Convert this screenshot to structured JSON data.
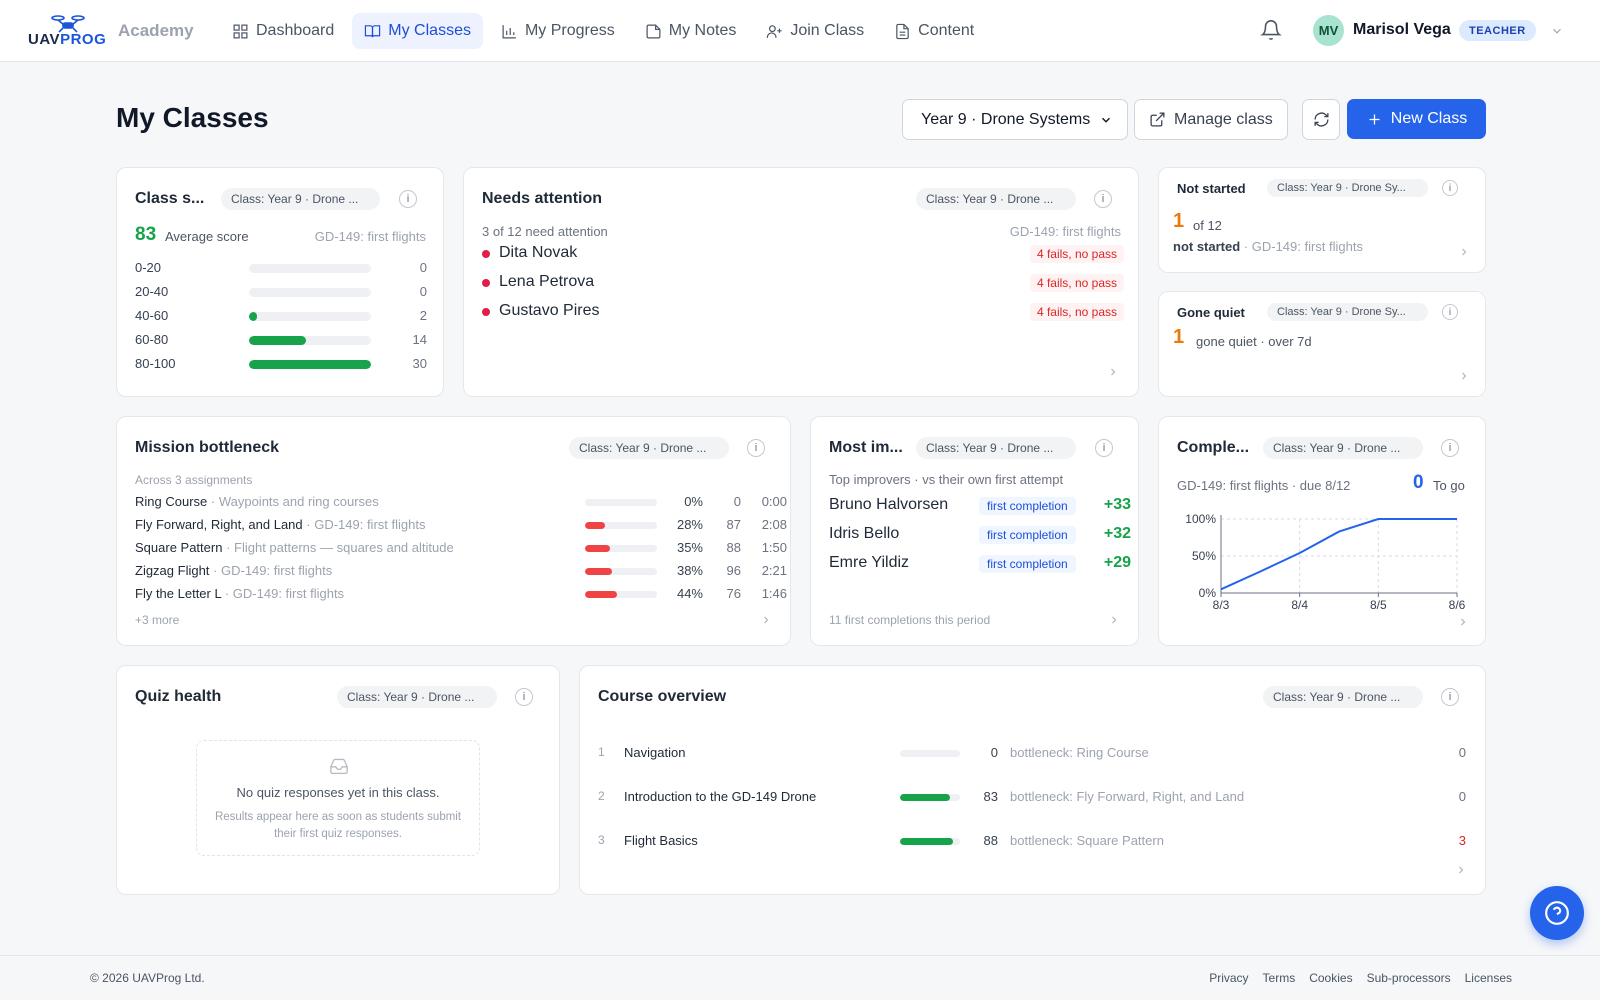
{
  "brand": {
    "logo_text_a": "UAV",
    "logo_text_b": "PROG",
    "app_name": "Academy"
  },
  "nav": [
    {
      "label": "Dashboard",
      "icon": "grid-icon"
    },
    {
      "label": "My Classes",
      "icon": "book-icon",
      "active": true
    },
    {
      "label": "My Progress",
      "icon": "bar-chart-icon"
    },
    {
      "label": "My Notes",
      "icon": "note-icon"
    },
    {
      "label": "Join Class",
      "icon": "user-plus-icon"
    },
    {
      "label": "Content",
      "icon": "document-icon"
    }
  ],
  "user": {
    "initials": "MV",
    "name": "Marisol Vega",
    "role": "TEACHER"
  },
  "page": {
    "title": "My Classes",
    "selected_class": "Year 9 · Drone Systems",
    "manage_label": "Manage class",
    "new_class_label": "New Class"
  },
  "class_summary": {
    "title": "Class s...",
    "chip": "Class: Year 9 · Drone ...",
    "average": "83",
    "average_label": "Average score",
    "assignment": "GD-149: first flights",
    "distribution": [
      {
        "range": "0-20",
        "count": "0",
        "fill": 0
      },
      {
        "range": "20-40",
        "count": "0",
        "fill": 0
      },
      {
        "range": "40-60",
        "count": "2",
        "fill": 0.067
      },
      {
        "range": "60-80",
        "count": "14",
        "fill": 0.467
      },
      {
        "range": "80-100",
        "count": "30",
        "fill": 1.0
      }
    ]
  },
  "needs_attention": {
    "title": "Needs attention",
    "chip": "Class: Year 9 · Drone ...",
    "summary": "3 of 12 need attention",
    "assignment": "GD-149: first flights",
    "students": [
      {
        "name": "Dita Novak",
        "tag": "4 fails, no pass"
      },
      {
        "name": "Lena Petrova",
        "tag": "4 fails, no pass"
      },
      {
        "name": "Gustavo Pires",
        "tag": "4 fails, no pass"
      }
    ]
  },
  "not_started": {
    "title": "Not started",
    "chip": "Class: Year 9 · Drone Sy...",
    "count": "1",
    "of": "of 12",
    "label": "not started",
    "assignment": "· GD-149: first flights"
  },
  "gone_quiet": {
    "title": "Gone quiet",
    "chip": "Class: Year 9 · Drone Sy...",
    "count": "1",
    "label": "gone quiet · over 7d"
  },
  "mission_bottleneck": {
    "title": "Mission bottleneck",
    "chip": "Class: Year 9 · Drone ...",
    "caption": "Across 3 assignments",
    "rows": [
      {
        "mission": "Ring Course",
        "context": "· Waypoints and ring courses",
        "pct": "0%",
        "fill": 0,
        "attempts": "0",
        "time": "0:00"
      },
      {
        "mission": "Fly Forward, Right, and Land",
        "context": "· GD-149: first flights",
        "pct": "28%",
        "fill": 0.28,
        "attempts": "87",
        "time": "2:08"
      },
      {
        "mission": "Square Pattern",
        "context": "· Flight patterns — squares and altitude",
        "pct": "35%",
        "fill": 0.35,
        "attempts": "88",
        "time": "1:50"
      },
      {
        "mission": "Zigzag Flight",
        "context": "· GD-149: first flights",
        "pct": "38%",
        "fill": 0.38,
        "attempts": "96",
        "time": "2:21"
      },
      {
        "mission": "Fly the Letter L",
        "context": "· GD-149: first flights",
        "pct": "44%",
        "fill": 0.44,
        "attempts": "76",
        "time": "1:46"
      }
    ],
    "more": "+3 more"
  },
  "most_improved": {
    "title": "Most im...",
    "chip": "Class: Year 9 · Drone ...",
    "caption": "Top improvers · vs their own first attempt",
    "rows": [
      {
        "name": "Bruno Halvorsen",
        "tag": "first completion",
        "gain": "+33"
      },
      {
        "name": "Idris Bello",
        "tag": "first completion",
        "gain": "+32"
      },
      {
        "name": "Emre Yildiz",
        "tag": "first completion",
        "gain": "+29"
      }
    ],
    "footer": "11 first completions this period"
  },
  "completion": {
    "title": "Comple...",
    "chip": "Class: Year 9 · Drone ...",
    "assignment": "GD-149: first flights · due 8/12",
    "to_go_count": "0",
    "to_go_label": "To go"
  },
  "chart_data": {
    "type": "line",
    "title": "",
    "xlabel": "",
    "ylabel": "",
    "x": [
      "8/3",
      "8/4",
      "8/5",
      "8/6"
    ],
    "x_ticks": [
      "8/3",
      "8/4",
      "8/5",
      "8/6"
    ],
    "y_ticks": [
      "0%",
      "50%",
      "100%"
    ],
    "ylim": [
      0,
      100
    ],
    "series": [
      {
        "x": [
          0,
          0.5,
          1,
          1.5,
          2,
          2.25,
          2.5,
          3
        ],
        "values": [
          5,
          29,
          54,
          83,
          100,
          100,
          100,
          100
        ]
      }
    ],
    "grid": true,
    "color": "#2563eb"
  },
  "quiz_health": {
    "title": "Quiz health",
    "chip": "Class: Year 9 · Drone ...",
    "empty_title": "No quiz responses yet in this class.",
    "empty_body": "Results appear here as soon as students submit their first quiz responses."
  },
  "course_overview": {
    "title": "Course overview",
    "chip": "Class: Year 9 · Drone ...",
    "rows": [
      {
        "num": "1",
        "name": "Navigation",
        "score": "0",
        "fill": 0,
        "bottleneck": "bottleneck: Ring Course",
        "count": "0"
      },
      {
        "num": "2",
        "name": "Introduction to the GD-149 Drone",
        "score": "83",
        "fill": 0.83,
        "bottleneck": "bottleneck: Fly Forward, Right, and Land",
        "count": "0"
      },
      {
        "num": "3",
        "name": "Flight Basics",
        "score": "88",
        "fill": 0.88,
        "bottleneck": "bottleneck: Square Pattern",
        "count": "3",
        "alert": true
      }
    ]
  },
  "footer": {
    "copyright": "© 2026 UAVProg Ltd.",
    "links": [
      "Privacy",
      "Terms",
      "Cookies",
      "Sub-processors",
      "Licenses"
    ]
  }
}
